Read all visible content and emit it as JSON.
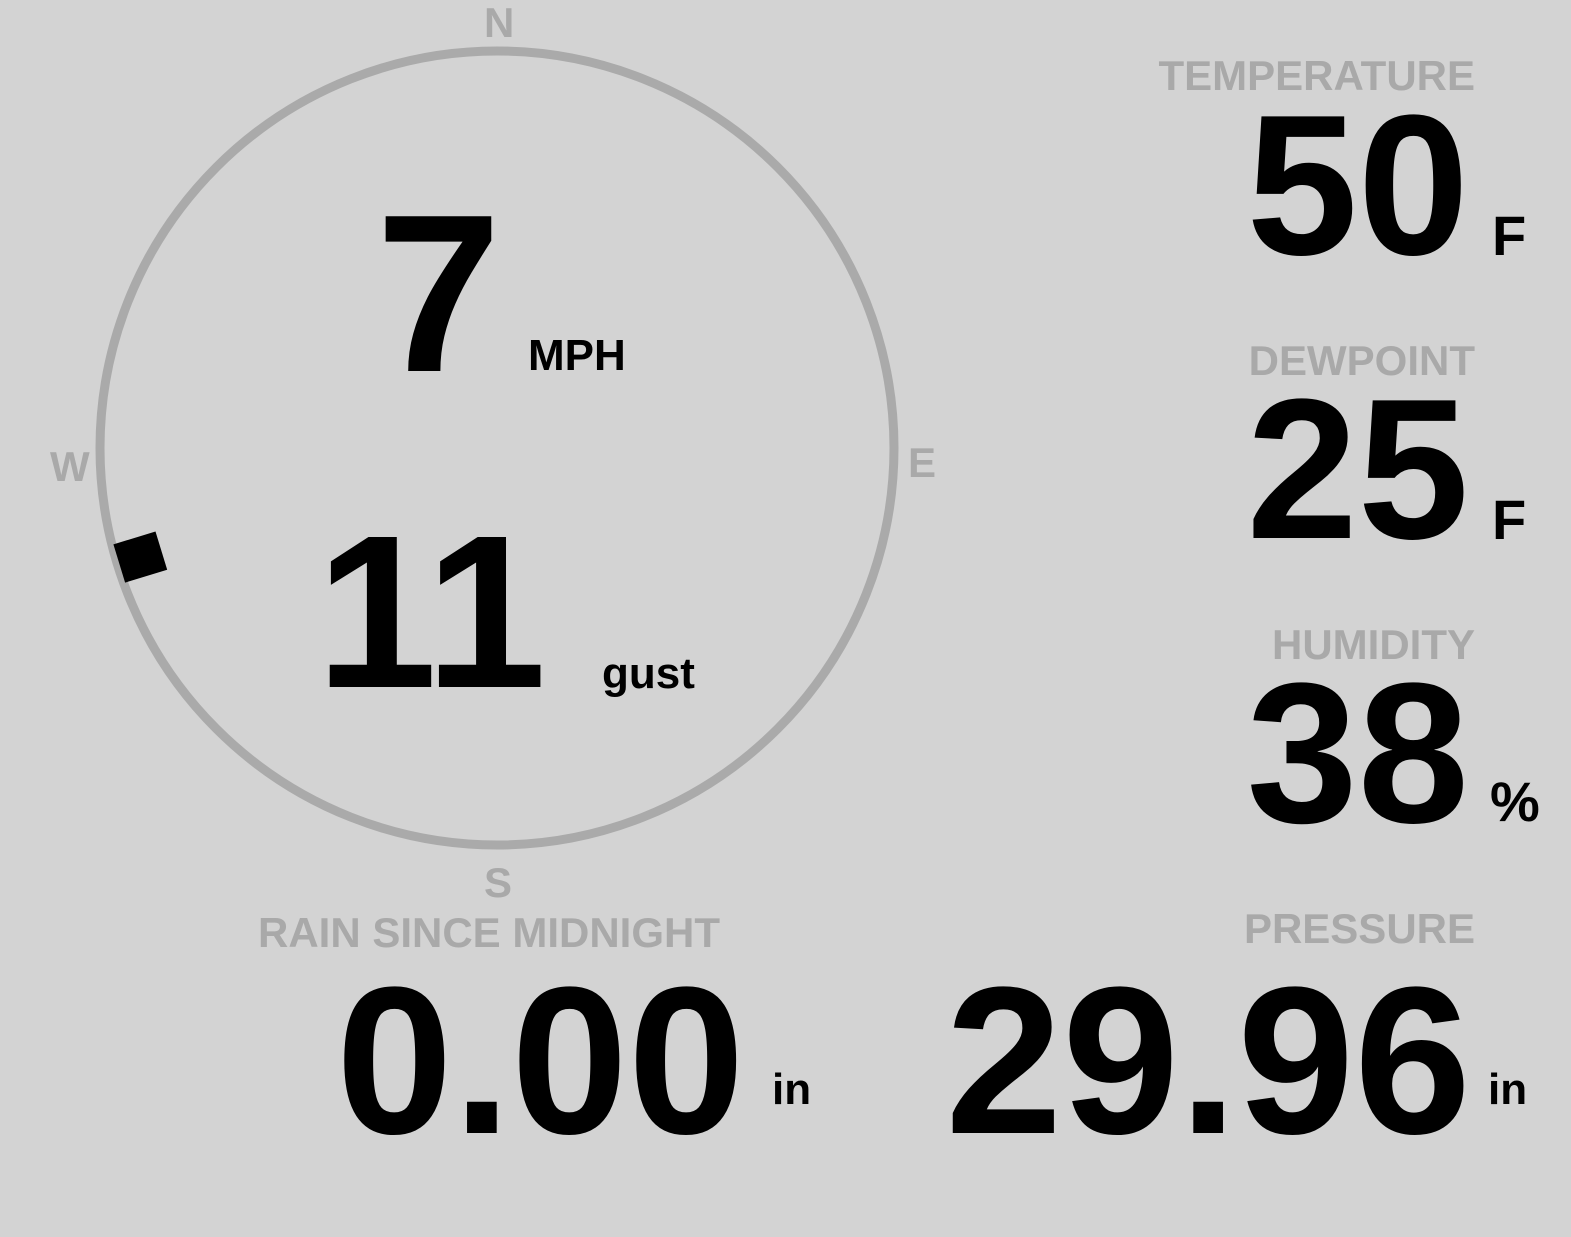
{
  "wind": {
    "speed": "7",
    "speed_unit": "MPH",
    "gust": "11",
    "gust_unit": "gust",
    "direction_degrees": 253,
    "compass": {
      "n": "N",
      "e": "E",
      "s": "S",
      "w": "W"
    }
  },
  "temperature": {
    "label": "TEMPERATURE",
    "value": "50",
    "unit": "F"
  },
  "dewpoint": {
    "label": "DEWPOINT",
    "value": "25",
    "unit": "F"
  },
  "humidity": {
    "label": "HUMIDITY",
    "value": "38",
    "unit": "%"
  },
  "rain": {
    "label": "RAIN SINCE MIDNIGHT",
    "value": "0.00",
    "unit": "in"
  },
  "pressure": {
    "label": "PRESSURE",
    "value": "29.96",
    "unit": "in"
  },
  "colors": {
    "background": "#d3d3d3",
    "label": "#a9a9a9",
    "value": "#000000"
  }
}
